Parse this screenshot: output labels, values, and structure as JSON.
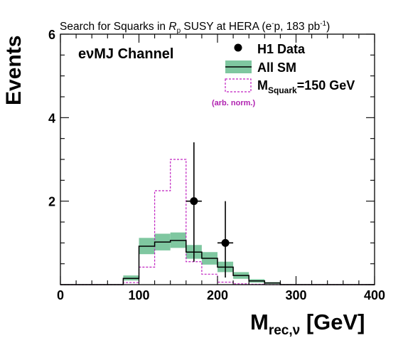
{
  "chart_data": {
    "type": "histogram",
    "title_prefix": "Search for Squarks in ",
    "title_rp": "R",
    "title_rp_sub": "p",
    "title_suffix": " SUSY at HERA (e",
    "title_sup_minus": "-",
    "title_tail": "p, 183 pb",
    "title_sup_inv": "-1",
    "title_close": ")",
    "channel_label": "eνMJ Channel",
    "ylabel": "Events",
    "xlabel_main": "M",
    "xlabel_sub": "rec,ν",
    "xlabel_unit": " [GeV]",
    "xlim": [
      0,
      400
    ],
    "ylim": [
      0,
      6
    ],
    "x_ticks": [
      0,
      100,
      200,
      300,
      400
    ],
    "x_tick_labels": [
      "0",
      "100",
      "200",
      "300",
      "400"
    ],
    "y_ticks": [
      2,
      4,
      6
    ],
    "y_tick_labels": [
      "2",
      "4",
      "6"
    ],
    "legend_position": "top-right",
    "legend": {
      "data_label": "H1 Data",
      "sm_label": "All SM",
      "squark_main": "M",
      "squark_sub": "Squark",
      "squark_tail": "=150 GeV",
      "squark_note": "(arb. norm.)"
    },
    "bin_edges": [
      0,
      20,
      40,
      60,
      80,
      100,
      120,
      140,
      160,
      180,
      200,
      220,
      240,
      260,
      280,
      300,
      320,
      340,
      360,
      380,
      400
    ],
    "sm_values": [
      0,
      0,
      0,
      0,
      0.15,
      0.92,
      1.02,
      1.06,
      0.78,
      0.63,
      0.42,
      0.22,
      0.09,
      0.04,
      0,
      0,
      0,
      0,
      0,
      0
    ],
    "sm_band_low": [
      0,
      0,
      0,
      0,
      0.1,
      0.73,
      0.82,
      0.88,
      0.62,
      0.48,
      0.3,
      0.14,
      0.05,
      0.02,
      0,
      0,
      0,
      0,
      0,
      0
    ],
    "sm_band_high": [
      0,
      0,
      0,
      0,
      0.22,
      1.12,
      1.22,
      1.25,
      0.95,
      0.78,
      0.55,
      0.3,
      0.13,
      0.06,
      0,
      0,
      0,
      0,
      0,
      0
    ],
    "squark_values": [
      0,
      0,
      0,
      0,
      0.05,
      0.42,
      2.25,
      3.0,
      0.55,
      0.25,
      0.06,
      0.02,
      0.01,
      0,
      0,
      0,
      0,
      0,
      0,
      0
    ],
    "data_points": [
      {
        "x": 170,
        "y": 2,
        "xerr": 10,
        "ylow": 0.55,
        "yhigh": 3.41
      },
      {
        "x": 210,
        "y": 1,
        "xerr": 10,
        "ylow": 0.17,
        "yhigh": 2.0
      }
    ],
    "colors": {
      "sm_band": "#7fc7a0",
      "sm_line": "#000000",
      "squark": "#c020c0",
      "data": "#000000",
      "note": "#b020b0"
    }
  }
}
